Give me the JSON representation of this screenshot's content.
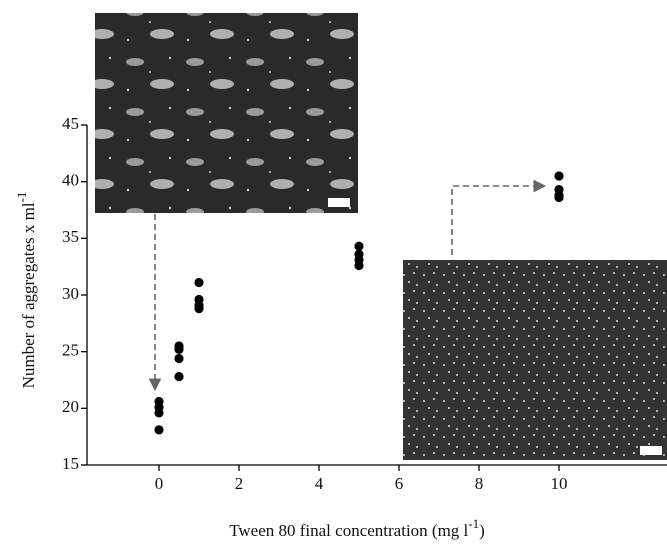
{
  "chart_data": {
    "type": "scatter",
    "y_label_parts": [
      "Number of aggregates x ml",
      "-1"
    ],
    "x_label_parts": [
      "Tween 80 final concentration (mg l",
      "-1",
      ")"
    ],
    "series": [
      {
        "color": "#000000",
        "x": [
          0,
          0,
          0,
          0,
          0.5,
          0.5,
          0.5,
          0.5,
          1,
          1,
          1,
          1,
          5,
          5,
          5,
          5,
          10,
          10,
          10,
          10
        ],
        "values": [
          18.1,
          19.6,
          20.1,
          20.6,
          22.8,
          24.4,
          25.2,
          25.5,
          28.8,
          29.1,
          29.6,
          31.1,
          32.6,
          33.1,
          33.6,
          34.3,
          38.6,
          38.8,
          39.3,
          40.5
        ]
      }
    ],
    "xlim": [
      -1.8,
      12.7
    ],
    "ylim": [
      15,
      45
    ],
    "xticks": [
      0,
      2,
      4,
      6,
      8,
      10
    ],
    "yticks": [
      15,
      20,
      25,
      30,
      35,
      40,
      45
    ]
  }
}
